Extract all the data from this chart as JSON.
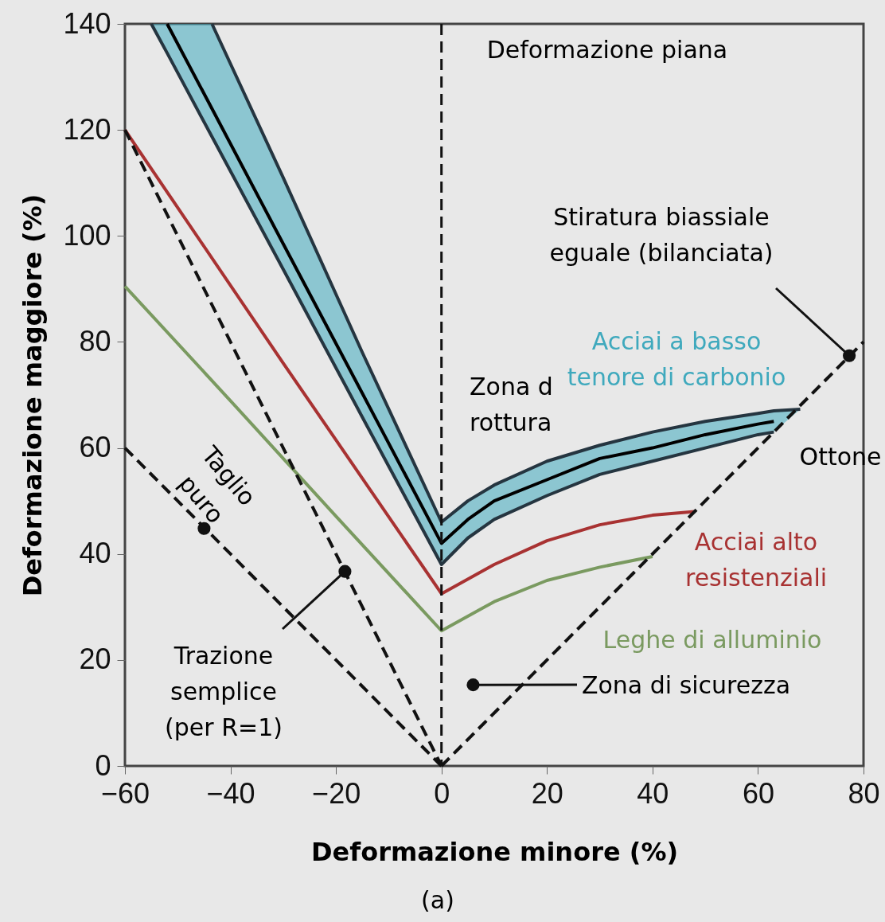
{
  "chart_data": {
    "type": "line",
    "xlabel": "Deformazione minore (%)",
    "ylabel": "Deformazione maggiore (%)",
    "xlim": [
      -60,
      80
    ],
    "ylim": [
      0,
      140
    ],
    "xticks": [
      -60,
      -40,
      -20,
      0,
      20,
      40,
      60,
      80
    ],
    "yticks": [
      0,
      20,
      40,
      60,
      80,
      100,
      120,
      140
    ],
    "series": [
      {
        "name": "Acciai a basso tenore di carbonio",
        "type": "line",
        "color": "#3fa9bd",
        "x": [
          -55,
          -52,
          -43.5,
          -30,
          -15,
          0,
          5,
          10,
          20,
          30,
          40,
          50,
          60,
          63,
          68
        ],
        "values": [
          null,
          null,
          null,
          null,
          null,
          null,
          null,
          null,
          null,
          null,
          null,
          null,
          null,
          null,
          null
        ],
        "lower": [
          140,
          134.5,
          118.7,
          93.7,
          65.8,
          38,
          43,
          46.5,
          51,
          55,
          57.5,
          60,
          62.5,
          63,
          67.3
        ],
        "upper": [
          140,
          140,
          140,
          111,
          78,
          46,
          50,
          53,
          57.5,
          60.5,
          63,
          65,
          66.5,
          67,
          67.3
        ]
      },
      {
        "type": "line",
        "color": "#253540",
        "x": [
          -55,
          -52,
          -43.5,
          -30,
          -15,
          0,
          5,
          10,
          20,
          30,
          40,
          50,
          60,
          63
        ],
        "values": [
          140,
          134.5,
          118.7,
          93.7,
          65.8,
          38,
          43,
          46.5,
          51,
          55,
          57.5,
          60,
          62.5,
          63
        ]
      },
      {
        "type": "line",
        "color": "#253540",
        "x": [
          -43.5,
          -30,
          -15,
          0,
          5,
          10,
          20,
          30,
          40,
          50,
          60,
          63,
          68
        ],
        "values": [
          140,
          111,
          78,
          46,
          50,
          53,
          57.5,
          60.5,
          63,
          65,
          66.5,
          67,
          67.3
        ]
      },
      {
        "name": "Acciai alto resistenziali",
        "type": "line",
        "color": "#a83232",
        "x": [
          -60,
          -30,
          0,
          10,
          20,
          30,
          40,
          48
        ],
        "values": [
          120,
          76,
          32.5,
          38,
          42.5,
          45.5,
          47.3,
          48
        ]
      },
      {
        "name": "Leghe di alluminio",
        "type": "line",
        "color": "#7a9a60",
        "x": [
          -60,
          -40,
          -20,
          0,
          10,
          20,
          30,
          40
        ],
        "values": [
          90.5,
          68.9,
          47.1,
          25.5,
          31,
          35,
          37.5,
          39.5
        ]
      },
      {
        "type": "line",
        "color": "#111111",
        "line_style": "dashed",
        "x": [
          -60,
          0
        ],
        "values": [
          60,
          0
        ]
      },
      {
        "type": "line",
        "color": "#111111",
        "line_style": "dashed",
        "x": [
          -60,
          0
        ],
        "values": [
          120,
          0
        ]
      },
      {
        "type": "line",
        "color": "#111111",
        "line_style": "dashed",
        "x": [
          0,
          80
        ],
        "values": [
          0,
          80
        ]
      },
      {
        "type": "scatter",
        "color": "#111111",
        "marker": "circle",
        "x": [
          -45,
          -18.3,
          6,
          77.3
        ],
        "values": [
          44.8,
          36.7,
          15.3,
          77.4
        ]
      },
      {
        "name": "Ottone",
        "type": "line",
        "color": "#000000",
        "x": [
          -52,
          -43.5,
          -30,
          -15,
          0,
          5,
          10,
          20,
          30,
          40,
          50,
          60,
          63
        ],
        "values": [
          140,
          124,
          98.5,
          70.3,
          42,
          46.5,
          50,
          54,
          58,
          60,
          62.5,
          64.5,
          65
        ]
      }
    ],
    "ref_lines": [
      {
        "axis": "x",
        "value": 0,
        "label": "Deformazione piana",
        "line_style": "dashed"
      }
    ],
    "annotations": [
      {
        "text": "Stiratura biassiale eguale (bilanciata)",
        "x": 77.3,
        "y": 77.4
      },
      "Zona d rottura",
      {
        "text": "Taglio puro",
        "x": -45,
        "y": 44.8
      },
      {
        "text": "Trazione semplice (per R=1)",
        "x": -18.3,
        "y": 36.7
      },
      "Zona di sicurezza",
      "(a)"
    ]
  }
}
